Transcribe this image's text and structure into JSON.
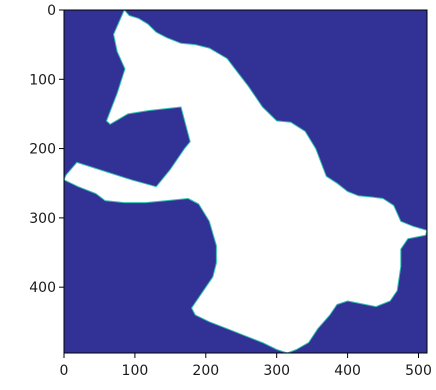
{
  "chart_data": {
    "type": "heatmap",
    "title": "",
    "xlabel": "",
    "ylabel": "",
    "xlim": [
      0,
      512
    ],
    "ylim": [
      0,
      495
    ],
    "y_inverted": true,
    "grid": false,
    "legend": "none",
    "background_value_color": "#323296",
    "mask_value_color": "#ffffff",
    "mask_edge_color": "#31c1b0",
    "x_ticks": [
      0,
      100,
      200,
      300,
      400,
      500
    ],
    "y_ticks": [
      0,
      100,
      200,
      300,
      400
    ],
    "x_tick_labels": [
      "0",
      "100",
      "200",
      "300",
      "400",
      "500"
    ],
    "y_tick_labels": [
      "0",
      "100",
      "200",
      "300",
      "400"
    ],
    "mask_polygon": [
      [
        85,
        0
      ],
      [
        92,
        8
      ],
      [
        105,
        12
      ],
      [
        118,
        20
      ],
      [
        130,
        32
      ],
      [
        145,
        40
      ],
      [
        165,
        48
      ],
      [
        185,
        50
      ],
      [
        205,
        55
      ],
      [
        230,
        70
      ],
      [
        245,
        90
      ],
      [
        260,
        110
      ],
      [
        280,
        140
      ],
      [
        300,
        160
      ],
      [
        320,
        162
      ],
      [
        340,
        175
      ],
      [
        355,
        200
      ],
      [
        370,
        240
      ],
      [
        385,
        250
      ],
      [
        400,
        262
      ],
      [
        415,
        268
      ],
      [
        435,
        270
      ],
      [
        450,
        272
      ],
      [
        465,
        282
      ],
      [
        475,
        305
      ],
      [
        492,
        312
      ],
      [
        512,
        318
      ],
      [
        510,
        325
      ],
      [
        485,
        330
      ],
      [
        475,
        345
      ],
      [
        475,
        370
      ],
      [
        470,
        405
      ],
      [
        460,
        420
      ],
      [
        440,
        428
      ],
      [
        400,
        420
      ],
      [
        385,
        425
      ],
      [
        375,
        440
      ],
      [
        358,
        460
      ],
      [
        345,
        480
      ],
      [
        328,
        490
      ],
      [
        315,
        495
      ],
      [
        300,
        490
      ],
      [
        280,
        480
      ],
      [
        255,
        470
      ],
      [
        230,
        460
      ],
      [
        205,
        450
      ],
      [
        185,
        440
      ],
      [
        180,
        430
      ],
      [
        190,
        415
      ],
      [
        200,
        400
      ],
      [
        210,
        385
      ],
      [
        215,
        365
      ],
      [
        215,
        340
      ],
      [
        205,
        305
      ],
      [
        190,
        280
      ],
      [
        175,
        272
      ],
      [
        145,
        275
      ],
      [
        115,
        278
      ],
      [
        85,
        278
      ],
      [
        58,
        275
      ],
      [
        45,
        265
      ],
      [
        20,
        255
      ],
      [
        0,
        245
      ],
      [
        3,
        238
      ],
      [
        18,
        220
      ],
      [
        95,
        245
      ],
      [
        130,
        255
      ],
      [
        150,
        230
      ],
      [
        170,
        200
      ],
      [
        178,
        190
      ],
      [
        165,
        140
      ],
      [
        120,
        145
      ],
      [
        90,
        150
      ],
      [
        65,
        165
      ],
      [
        60,
        160
      ],
      [
        75,
        120
      ],
      [
        86,
        85
      ],
      [
        75,
        60
      ],
      [
        70,
        35
      ]
    ]
  }
}
